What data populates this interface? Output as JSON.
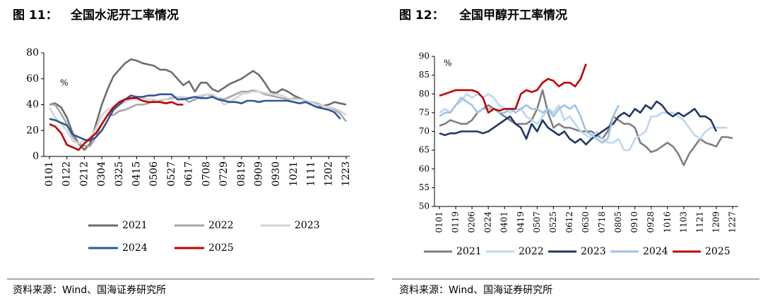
{
  "chart_data": [
    {
      "type": "line",
      "figure": "图 11：",
      "title": "全国水泥开工率情况",
      "unit": "%",
      "source": "资料来源：Wind、国海证券研究所",
      "categories": [
        "0101",
        null,
        null,
        "0122",
        null,
        null,
        "0212",
        null,
        null,
        "0304",
        null,
        null,
        "0325",
        null,
        null,
        "0415",
        null,
        null,
        "0506",
        null,
        null,
        "0527",
        null,
        null,
        "0617",
        null,
        null,
        "0708",
        null,
        null,
        "0729",
        null,
        null,
        "0819",
        null,
        null,
        "0909",
        null,
        null,
        "0930",
        null,
        null,
        "1021",
        null,
        null,
        "1111",
        null,
        null,
        "1202",
        null,
        null,
        "1223"
      ],
      "ylim": [
        0,
        80
      ],
      "yticks": [
        0,
        20,
        40,
        60,
        80
      ],
      "series": [
        {
          "name": "2021",
          "color": "#6d6d6d",
          "values": [
            40,
            41,
            38,
            30,
            18,
            10,
            5,
            10,
            25,
            40,
            52,
            62,
            67,
            72,
            75,
            74,
            72,
            71,
            70,
            67,
            67,
            65,
            60,
            55,
            58,
            50,
            57,
            57,
            52,
            50,
            53,
            56,
            58,
            60,
            63,
            66,
            63,
            57,
            50,
            49,
            52,
            50,
            47,
            45,
            43,
            40,
            38,
            39,
            40,
            42,
            41,
            40
          ]
        },
        {
          "name": "2022",
          "color": "#a6a6a6",
          "values": [
            40,
            40,
            33,
            25,
            15,
            10,
            8,
            8,
            15,
            25,
            32,
            32,
            35,
            36,
            38,
            40,
            40,
            41,
            43,
            43,
            44,
            45,
            46,
            45,
            42,
            44,
            46,
            48,
            47,
            45,
            44,
            46,
            48,
            50,
            50,
            51,
            50,
            48,
            47,
            46,
            45,
            44,
            45,
            44,
            43,
            42,
            41,
            39,
            38,
            36,
            33,
            27
          ]
        },
        {
          "name": "2023",
          "color": "#d4d4d4",
          "values": [
            38,
            30,
            25,
            20,
            12,
            10,
            12,
            14,
            22,
            32,
            36,
            38,
            40,
            42,
            44,
            46,
            45,
            44,
            44,
            42,
            44,
            46,
            46,
            46,
            45,
            46,
            47,
            48,
            48,
            45,
            40,
            42,
            45,
            48,
            49,
            50,
            50,
            49,
            48,
            48,
            47,
            45,
            44,
            44,
            43,
            42,
            40,
            39,
            38,
            37,
            35,
            32
          ]
        },
        {
          "name": "2024",
          "color": "#2f5597",
          "values": [
            29,
            28,
            26,
            24,
            17,
            15,
            13,
            12,
            15,
            20,
            28,
            36,
            40,
            44,
            47,
            46,
            46,
            47,
            47,
            48,
            48,
            48,
            44,
            44,
            45,
            46,
            45,
            45,
            46,
            44,
            43,
            42,
            42,
            41,
            43,
            43,
            42,
            43,
            43,
            43,
            43,
            43,
            42,
            41,
            42,
            40,
            38,
            37,
            36,
            34,
            29,
            null
          ]
        },
        {
          "name": "2025",
          "color": "#c00000",
          "values": [
            25,
            23,
            18,
            9,
            7,
            5,
            10,
            14,
            18,
            25,
            32,
            38,
            42,
            44,
            45,
            45,
            43,
            42,
            42,
            42,
            41,
            42,
            40,
            40,
            null,
            null,
            null,
            null,
            null,
            null,
            null,
            null,
            null,
            null,
            null,
            null,
            null,
            null,
            null,
            null,
            null,
            null,
            null,
            null,
            null,
            null,
            null,
            null,
            null,
            null,
            null,
            null
          ]
        }
      ]
    },
    {
      "type": "line",
      "figure": "图 12：",
      "title": "全国甲醇开工率情况",
      "unit": "%",
      "source": "资料来源：Wind、国海证券研究所",
      "categories": [
        "0101",
        null,
        null,
        "0119",
        null,
        null,
        "0206",
        null,
        null,
        "0224",
        null,
        null,
        "0401",
        null,
        null,
        "0419",
        null,
        null,
        "0507",
        null,
        null,
        "0525",
        null,
        null,
        "0612",
        null,
        null,
        "0630",
        null,
        null,
        "0718",
        null,
        null,
        "0805",
        null,
        null,
        "0910",
        null,
        null,
        "0928",
        null,
        null,
        "1016",
        null,
        null,
        "1103",
        null,
        null,
        "1121",
        null,
        null,
        "1209",
        null,
        null,
        "1227"
      ],
      "ylim": [
        50,
        90
      ],
      "yticks": [
        50,
        55,
        60,
        65,
        70,
        75,
        80,
        85,
        90
      ],
      "series": [
        {
          "name": "2021",
          "color": "#7f7f7f",
          "values": [
            71.5,
            72,
            73,
            72.5,
            72,
            72,
            73,
            75,
            76,
            77,
            76,
            75,
            74,
            73,
            72,
            72,
            72,
            73,
            76,
            81,
            75,
            71,
            72,
            71,
            71,
            70.5,
            70,
            70,
            70,
            69,
            68,
            70,
            74,
            73,
            72,
            72,
            71,
            67,
            66,
            64.5,
            65,
            66,
            67,
            66,
            64,
            61,
            64,
            66,
            68,
            67,
            66.5,
            66,
            68.5,
            68.5,
            68.2
          ]
        },
        {
          "name": "2022",
          "color": "#bdd7ee",
          "values": [
            75,
            76,
            75,
            77,
            78,
            80,
            79,
            80,
            79,
            80,
            79,
            77,
            76,
            75,
            76,
            76,
            74,
            73,
            72,
            74,
            76,
            75,
            77,
            73,
            74,
            72,
            70,
            69,
            68,
            70,
            68,
            67,
            67,
            68,
            65,
            65,
            68,
            69,
            70,
            74,
            74,
            75,
            75,
            75,
            74,
            73,
            71,
            69,
            68,
            70,
            71,
            71,
            71,
            71,
            null
          ]
        },
        {
          "name": "2023",
          "color": "#1f3864",
          "values": [
            69.5,
            69,
            69.5,
            69.5,
            70,
            70,
            70,
            70,
            69.5,
            70,
            71,
            72,
            73,
            74,
            72,
            71,
            68,
            72,
            70,
            73,
            71,
            70,
            69,
            70,
            68,
            67,
            68,
            66.5,
            68,
            69,
            70,
            71,
            72,
            74,
            75,
            74,
            76,
            75,
            77,
            76,
            78,
            77,
            75,
            74,
            75,
            74,
            75,
            76,
            74,
            74,
            73,
            70,
            null,
            null,
            null
          ]
        },
        {
          "name": "2024",
          "color": "#9dc3e6",
          "values": [
            74,
            75,
            75,
            77,
            79,
            78,
            77,
            75,
            76,
            76,
            76,
            75,
            75,
            76,
            75,
            76,
            77,
            76,
            76,
            75,
            76,
            74,
            76,
            77,
            76,
            77,
            74,
            70,
            69,
            68,
            67,
            68,
            74,
            77,
            null,
            null,
            null,
            null,
            null,
            null,
            null,
            null,
            null,
            null,
            null,
            null,
            null,
            null,
            null,
            null,
            null,
            null,
            null,
            null,
            null
          ]
        },
        {
          "name": "2025",
          "color": "#c00000",
          "values": [
            79.5,
            80,
            80.5,
            81,
            81,
            81,
            81,
            80.5,
            79,
            75,
            76,
            75.5,
            76,
            76,
            76,
            80,
            81,
            80.5,
            81,
            83,
            84,
            83.5,
            82,
            83,
            83,
            82,
            84,
            88,
            null,
            null,
            null,
            null,
            null,
            null,
            null,
            null,
            null,
            null,
            null,
            null,
            null,
            null,
            null,
            null,
            null,
            null,
            null,
            null,
            null,
            null,
            null,
            null,
            null,
            null,
            null
          ]
        }
      ]
    }
  ]
}
